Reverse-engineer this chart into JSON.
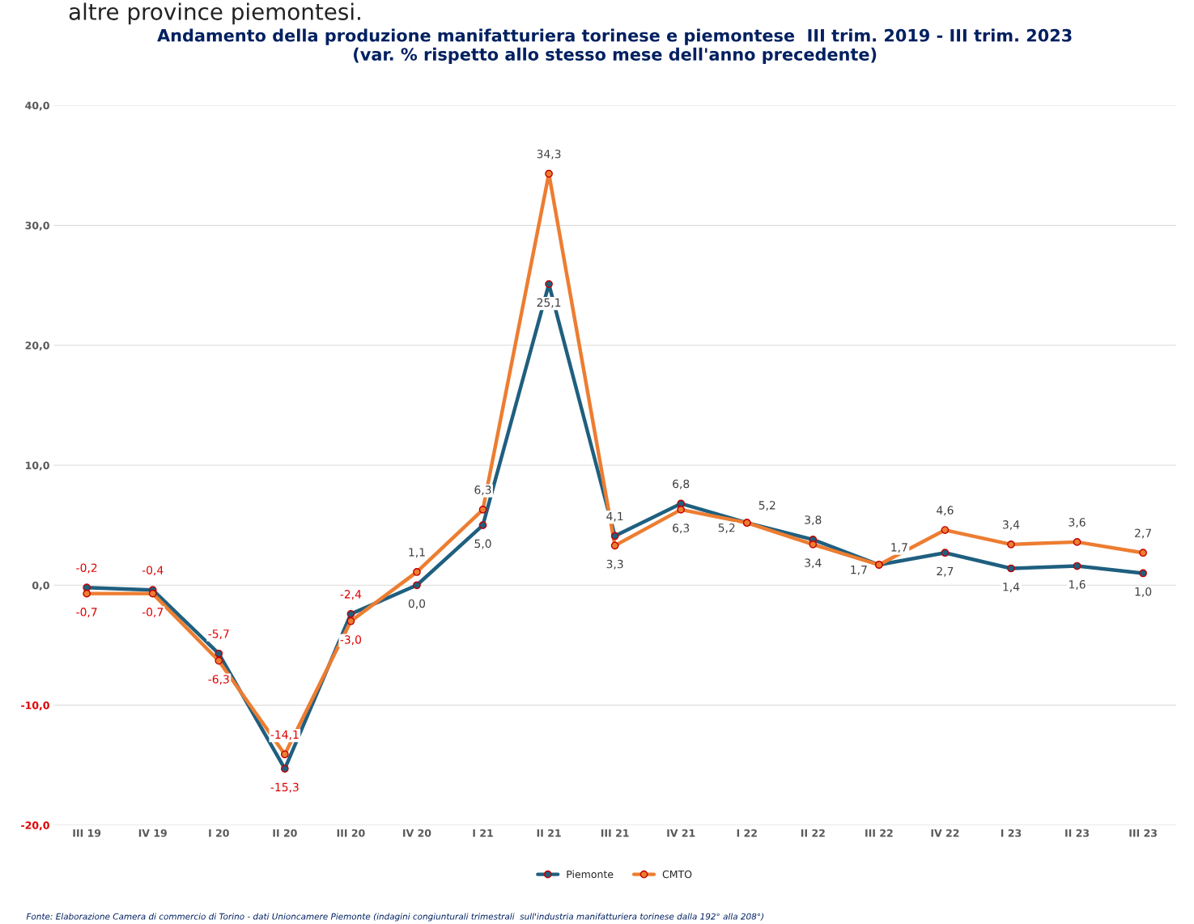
{
  "chart_data": {
    "type": "line",
    "title": "Andamento della produzione manifatturiera torinese e piemontese  III trim. 2019 - III trim. 2023\n(var. % rispetto allo stesso mese dell'anno precedente)",
    "categories": [
      "III 19",
      "IV 19",
      "I 20",
      "II 20",
      "III 20",
      "IV 20",
      "I 21",
      "II 21",
      "III 21",
      "IV 21",
      "I 22",
      "II 22",
      "III 22",
      "IV 22",
      "I 23",
      "II 23",
      "III 23"
    ],
    "series": [
      {
        "name": "Piemonte",
        "color": "#1f5f7f",
        "values": [
          -0.2,
          -0.4,
          -5.7,
          -15.3,
          -2.4,
          0.0,
          5.0,
          25.1,
          4.1,
          6.8,
          5.2,
          3.8,
          1.7,
          2.7,
          1.4,
          1.6,
          1.0
        ],
        "value_labels": [
          "-0,2",
          "-0,4",
          "-5,7",
          "-15,3",
          "-2,4",
          "0,0",
          "5,0",
          "25,1",
          "4,1",
          "6,8",
          "5,2",
          "3,8",
          "1,7",
          "2,7",
          "1,4",
          "1,6",
          "1,0"
        ]
      },
      {
        "name": "CMTO",
        "color": "#ed7d31",
        "values": [
          -0.7,
          -0.7,
          -6.3,
          -14.1,
          -3.0,
          1.1,
          6.3,
          34.3,
          3.3,
          6.3,
          5.2,
          3.4,
          1.7,
          4.6,
          3.4,
          3.6,
          2.7
        ],
        "value_labels": [
          "-0,7",
          "-0,7",
          "-6,3",
          "-14,1",
          "-3,0",
          "1,1",
          "6,3",
          "34,3",
          "3,3",
          "6,3",
          "5,2",
          "3,4",
          "1,7",
          "4,6",
          "3,4",
          "3,6",
          "2,7"
        ]
      }
    ],
    "ylim": [
      -20,
      40
    ],
    "yticks": [
      {
        "value": -20,
        "label": "-20,0"
      },
      {
        "value": -10,
        "label": "-10,0"
      },
      {
        "value": 0,
        "label": "0,0"
      },
      {
        "value": 10,
        "label": "10,0"
      },
      {
        "value": 20,
        "label": "20,0"
      },
      {
        "value": 30,
        "label": "30,0"
      },
      {
        "value": 40,
        "label": "40,0"
      }
    ],
    "grid": "y",
    "legend": "bottom",
    "marker": "circle",
    "line_style": "solid",
    "annotations": [
      "altre province piemontesi.",
      "Fonte: Elaborazione Camera di commercio di Torino - dati Unioncamere Piemonte (indagini congiunturali trimestrali  sull'industria manifatturiera torinese dalla 192° alla 208°)"
    ]
  }
}
